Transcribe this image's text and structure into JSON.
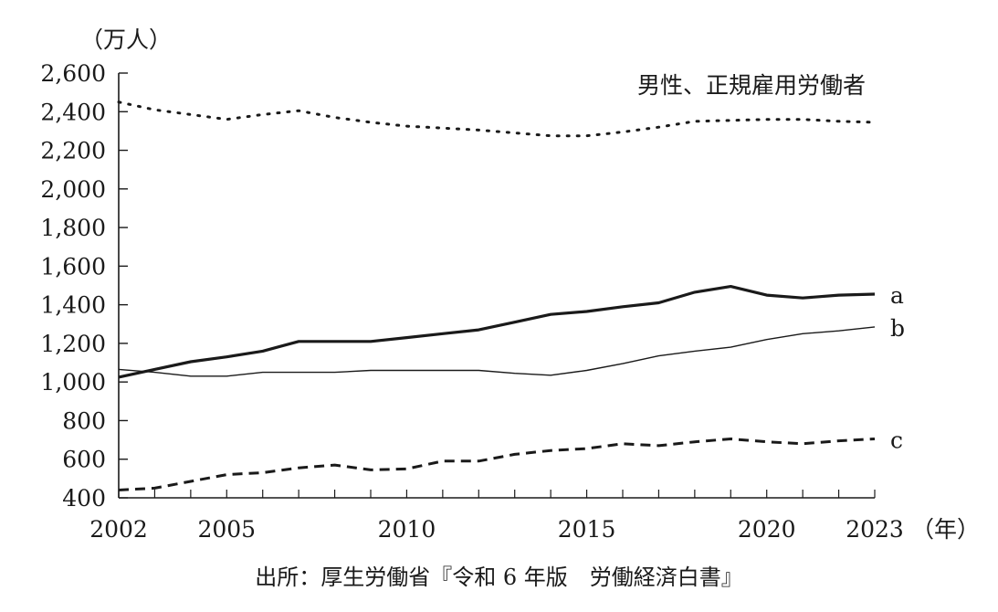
{
  "chart_data": {
    "type": "line",
    "y_unit_label": "（万人）",
    "x_unit_label": "（年）",
    "annotation": "男性、正規雇用労働者",
    "source": "出所：厚生労働省『令和 6 年版　労働経済白書』",
    "ylim": [
      400,
      2600
    ],
    "xlim": [
      2002,
      2023
    ],
    "y_ticks": [
      400,
      600,
      800,
      1000,
      1200,
      1400,
      1600,
      1800,
      2000,
      2200,
      2400,
      2600
    ],
    "y_tick_labels": [
      "400",
      "600",
      "800",
      "1,000",
      "1,200",
      "1,400",
      "1,600",
      "1,800",
      "2,000",
      "2,200",
      "2,400",
      "2,600"
    ],
    "x_tick_labels": [
      "2002",
      "2005",
      "2010",
      "2015",
      "2020",
      "2023"
    ],
    "x_tick_positions": [
      2002,
      2005,
      2010,
      2015,
      2020,
      2023
    ],
    "x": [
      2002,
      2003,
      2004,
      2005,
      2006,
      2007,
      2008,
      2009,
      2010,
      2011,
      2012,
      2013,
      2014,
      2015,
      2016,
      2017,
      2018,
      2019,
      2020,
      2021,
      2022,
      2023
    ],
    "series": [
      {
        "label": "",
        "style": "dotted",
        "values": [
          2450,
          2410,
          2385,
          2360,
          2385,
          2405,
          2370,
          2345,
          2325,
          2315,
          2305,
          2290,
          2275,
          2275,
          2295,
          2320,
          2350,
          2355,
          2360,
          2360,
          2350,
          2345
        ]
      },
      {
        "label": "a",
        "style": "thick",
        "values": [
          1025,
          1065,
          1105,
          1130,
          1160,
          1210,
          1210,
          1210,
          1230,
          1250,
          1270,
          1310,
          1350,
          1365,
          1390,
          1410,
          1465,
          1495,
          1450,
          1435,
          1450,
          1455
        ]
      },
      {
        "label": "b",
        "style": "thin",
        "values": [
          1065,
          1050,
          1030,
          1030,
          1050,
          1050,
          1050,
          1060,
          1060,
          1060,
          1060,
          1045,
          1035,
          1060,
          1095,
          1135,
          1160,
          1180,
          1220,
          1250,
          1265,
          1285
        ]
      },
      {
        "label": "c",
        "style": "dashed",
        "values": [
          440,
          450,
          485,
          520,
          530,
          555,
          570,
          545,
          550,
          590,
          590,
          625,
          645,
          655,
          680,
          670,
          690,
          705,
          690,
          680,
          695,
          705
        ]
      }
    ]
  }
}
